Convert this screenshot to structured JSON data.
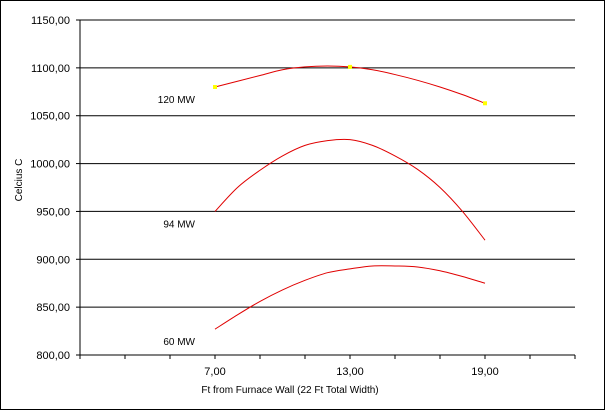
{
  "chart_data": {
    "type": "line",
    "xlabel": "Ft from Furnace Wall (22 Ft  Total Width)",
    "ylabel": "Celcius C",
    "xlim": [
      1,
      23
    ],
    "ylim": [
      800,
      1150
    ],
    "x_ticks": [
      7,
      13,
      19
    ],
    "x_tick_labels": [
      "7,00",
      "13,00",
      "19,00"
    ],
    "y_ticks": [
      800,
      850,
      900,
      950,
      1000,
      1050,
      1100,
      1150
    ],
    "y_tick_labels": [
      "800,00",
      "850,00",
      "900,00",
      "950,00",
      "1000,00",
      "1050,00",
      "1100,00",
      "1150,00"
    ],
    "grid": "horizontal",
    "series": [
      {
        "name": "120 MW",
        "points": [
          [
            7,
            1080
          ],
          [
            8,
            1086
          ],
          [
            9,
            1092
          ],
          [
            10,
            1098
          ],
          [
            11,
            1101
          ],
          [
            12,
            1102
          ],
          [
            13,
            1101
          ],
          [
            14,
            1098
          ],
          [
            15,
            1093
          ],
          [
            16,
            1087
          ],
          [
            17,
            1080
          ],
          [
            18,
            1072
          ],
          [
            19,
            1063
          ]
        ],
        "markers": [
          [
            7,
            1080
          ],
          [
            13,
            1101
          ],
          [
            19,
            1063
          ]
        ]
      },
      {
        "name": "94 MW",
        "points": [
          [
            7,
            950
          ],
          [
            8,
            975
          ],
          [
            9,
            993
          ],
          [
            10,
            1008
          ],
          [
            11,
            1019
          ],
          [
            12,
            1024
          ],
          [
            13,
            1025
          ],
          [
            14,
            1019
          ],
          [
            15,
            1008
          ],
          [
            16,
            994
          ],
          [
            17,
            975
          ],
          [
            18,
            950
          ],
          [
            19,
            920
          ]
        ]
      },
      {
        "name": "60 MW",
        "points": [
          [
            7,
            827
          ],
          [
            8,
            842
          ],
          [
            9,
            856
          ],
          [
            10,
            868
          ],
          [
            11,
            878
          ],
          [
            12,
            886
          ],
          [
            13,
            890
          ],
          [
            14,
            893
          ],
          [
            15,
            893
          ],
          [
            16,
            892
          ],
          [
            17,
            888
          ],
          [
            18,
            882
          ],
          [
            19,
            875
          ]
        ]
      }
    ],
    "colors": {
      "line": "#e00000",
      "marker": "#ffff00",
      "grid": "#000000"
    }
  }
}
